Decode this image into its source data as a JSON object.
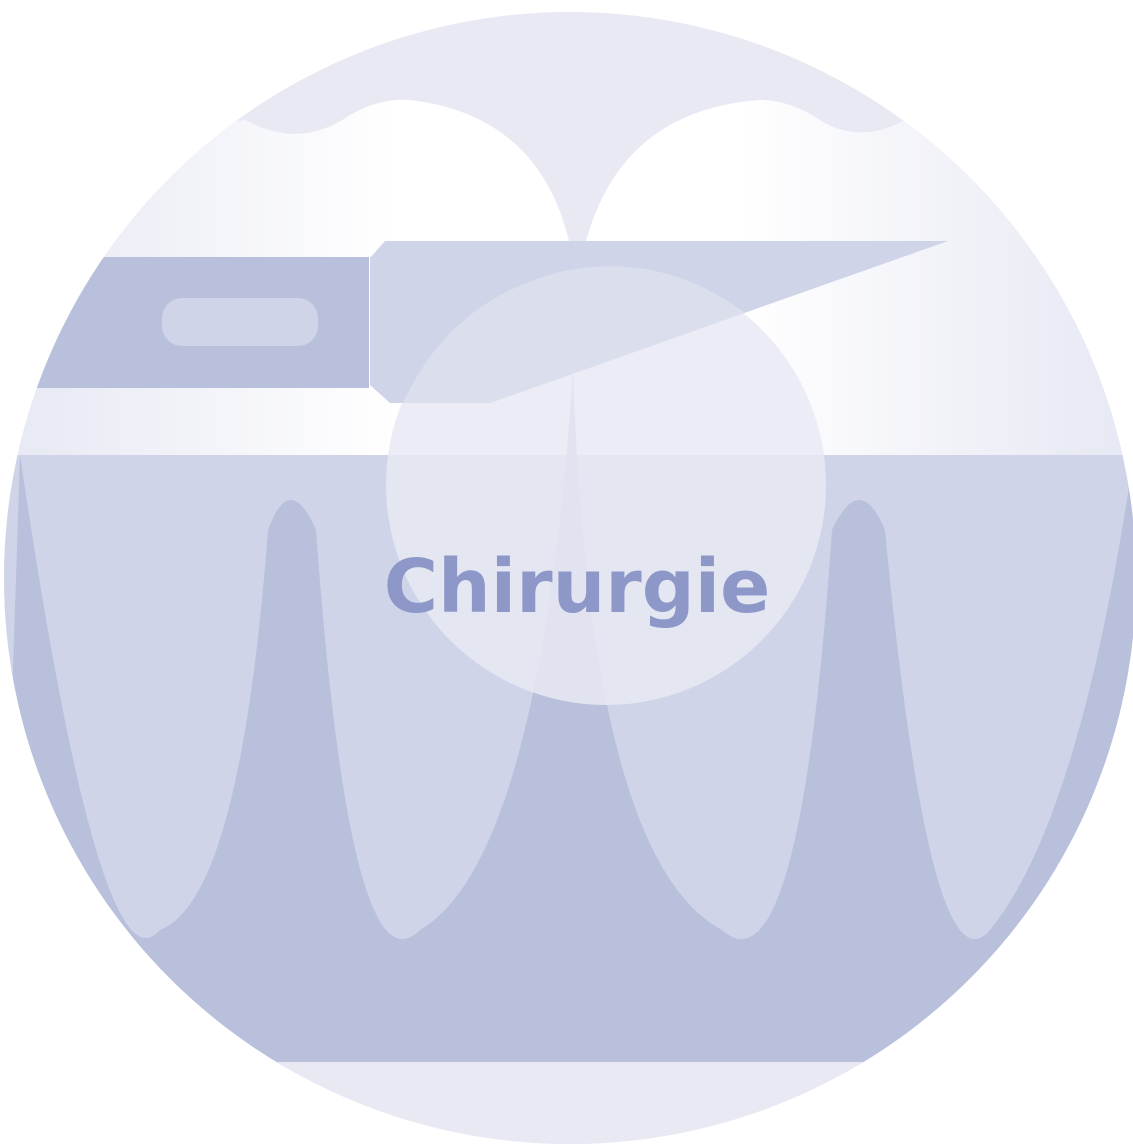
{
  "label": "Chirurgie"
}
